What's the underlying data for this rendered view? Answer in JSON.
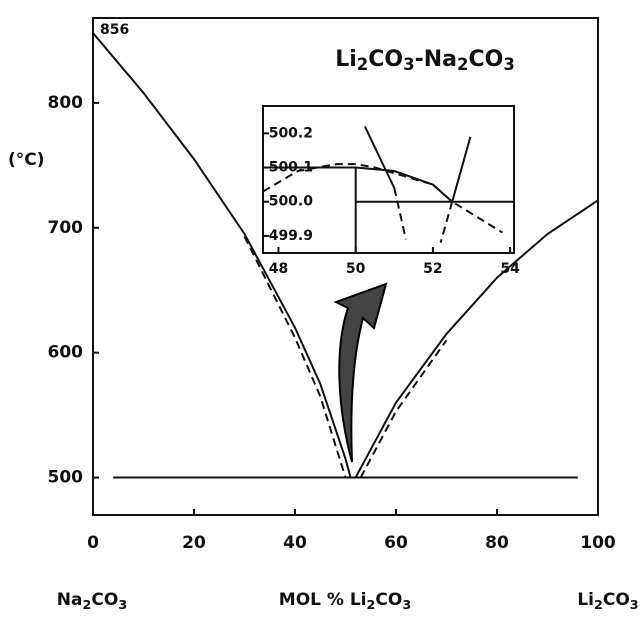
{
  "chart_data": [
    {
      "type": "line",
      "title": "Li2CO3-Na2CO3",
      "xlabel": "MOL % Li2CO3",
      "ylabel": "(°C)",
      "left_label": "Na2CO3",
      "right_label": "Li2CO3",
      "annotation": "856",
      "xlim": [
        0,
        100
      ],
      "ylim": [
        470,
        868
      ],
      "xticks": [
        0,
        20,
        40,
        60,
        80,
        100
      ],
      "yticks": [
        500,
        600,
        700,
        800
      ],
      "series": [
        {
          "color": "#111111",
          "dash": false,
          "x": [
            0,
            10,
            20,
            30,
            40,
            45,
            50,
            51
          ],
          "values": [
            856,
            808,
            755,
            695,
            620,
            575,
            515,
            500
          ]
        },
        {
          "color": "#111111",
          "dash": true,
          "x": [
            30,
            40,
            45,
            50
          ],
          "values": [
            693,
            612,
            565,
            500
          ]
        },
        {
          "color": "#111111",
          "dash": false,
          "x": [
            52,
            60,
            70,
            80,
            90,
            100
          ],
          "values": [
            500,
            560,
            615,
            660,
            695,
            722
          ]
        },
        {
          "color": "#111111",
          "dash": true,
          "x": [
            53,
            60,
            70
          ],
          "values": [
            500,
            553,
            610
          ]
        },
        {
          "color": "#111111",
          "dash": false,
          "x": [
            4,
            96
          ],
          "values": [
            500,
            500
          ]
        }
      ]
    },
    {
      "type": "line",
      "xlim": [
        47.6,
        54.1
      ],
      "ylim": [
        499.85,
        500.28
      ],
      "xticks": [
        48,
        50,
        52,
        54
      ],
      "yticks": [
        {
          "value": 500.2,
          "label": "500.2"
        },
        {
          "value": 500.1,
          "label": "500.1"
        },
        {
          "value": 500.0,
          "label": "500.0"
        },
        {
          "value": 499.9,
          "label": "499.9"
        }
      ],
      "series": [
        {
          "color": "#111111",
          "dash": false,
          "x": [
            47.6,
            50,
            51,
            52,
            52.5
          ],
          "values": [
            500.1,
            500.1,
            500.09,
            500.05,
            500.0
          ]
        },
        {
          "color": "#111111",
          "dash": true,
          "x": [
            47.6,
            48.5,
            49.5,
            50,
            50.5,
            52,
            52.5,
            53.8
          ],
          "values": [
            500.03,
            500.09,
            500.11,
            500.11,
            500.1,
            500.05,
            500.0,
            499.91
          ]
        },
        {
          "color": "#111111",
          "dash": false,
          "x": [
            50,
            50
          ],
          "values": [
            500.1,
            499.85
          ]
        },
        {
          "color": "#111111",
          "dash": false,
          "x": [
            50,
            54.1
          ],
          "values": [
            500.0,
            500.0
          ]
        },
        {
          "color": "#111111",
          "dash": false,
          "x": [
            50.24,
            51.0
          ],
          "values": [
            500.22,
            500.04
          ]
        },
        {
          "color": "#111111",
          "dash": true,
          "x": [
            51.0,
            51.3
          ],
          "values": [
            500.04,
            499.89
          ]
        },
        {
          "color": "#111111",
          "dash": false,
          "x": [
            52.97,
            52.5
          ],
          "values": [
            500.19,
            500.0
          ]
        },
        {
          "color": "#111111",
          "dash": true,
          "x": [
            52.5,
            52.2
          ],
          "values": [
            500.0,
            499.88
          ]
        }
      ]
    }
  ]
}
